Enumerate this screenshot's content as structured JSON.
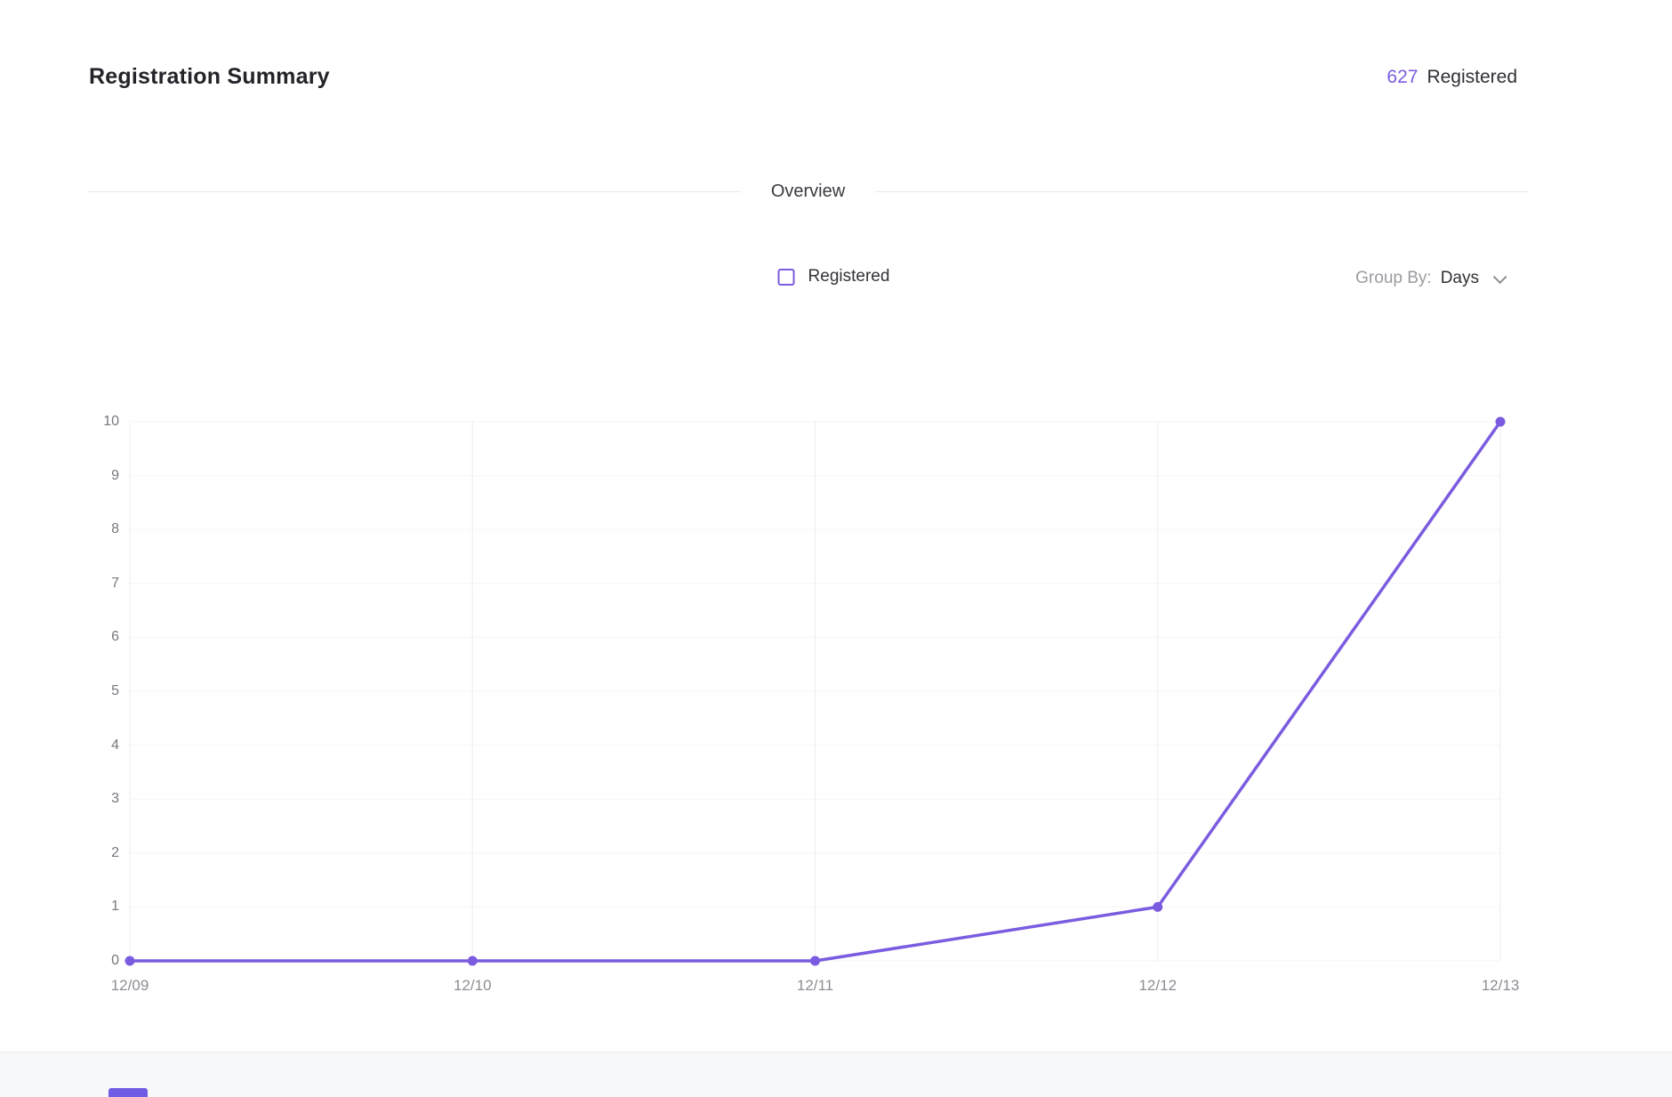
{
  "header": {
    "title": "Registration Summary",
    "count": "627",
    "count_label": "Registered"
  },
  "section": {
    "overview_label": "Overview"
  },
  "legend": {
    "registered_label": "Registered"
  },
  "group_by": {
    "label": "Group By:",
    "value": "Days"
  },
  "colors": {
    "accent": "#7b5ce0",
    "grid_vertical": "#ededf1",
    "grid_horizontal": "#f5f5f8",
    "axis_text": "#8d8d94"
  },
  "chart_data": {
    "type": "line",
    "title": "",
    "xlabel": "",
    "ylabel": "",
    "x": [
      "12/09",
      "12/10",
      "12/11",
      "12/12",
      "12/13"
    ],
    "series": [
      {
        "name": "Registered",
        "values": [
          0,
          0,
          0,
          1,
          10
        ]
      }
    ],
    "ylim": [
      0,
      10
    ],
    "yticks": [
      0,
      1,
      2,
      3,
      4,
      5,
      6,
      7,
      8,
      9,
      10
    ],
    "grid": true,
    "legend_position": "top-center"
  }
}
